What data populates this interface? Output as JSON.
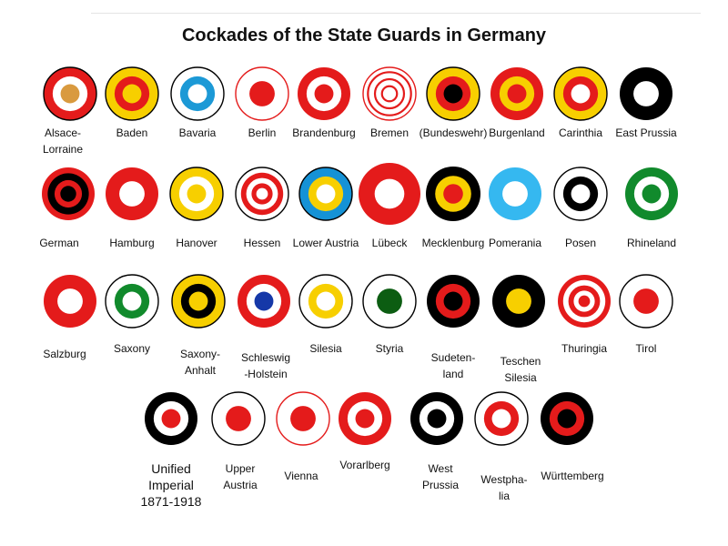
{
  "title": "Cockades of the State Guards in Germany",
  "colors": {
    "red": "#e41b1b",
    "yellow": "#f7cf00",
    "black": "#000000",
    "white": "#ffffff",
    "green": "#118a2c",
    "blue": "#1592d6",
    "darkgreen": "#0c5d12"
  },
  "rows": [
    {
      "items": [
        {
          "name": "Alsace-\nLorraine",
          "rings": [
            "black-thin",
            "red",
            "white",
            "#d99a3f"
          ]
        },
        {
          "name": "Baden",
          "rings": [
            "black-thin",
            "yellow",
            "red",
            "yellow"
          ]
        },
        {
          "name": "Bavaria",
          "rings": [
            "black-thin",
            "white",
            "#1c99d6",
            "white"
          ]
        },
        {
          "name": "Berlin",
          "rings": [
            "red-thin",
            "white",
            "red"
          ]
        },
        {
          "name": "Brandenburg",
          "rings": [
            "red",
            "white",
            "red"
          ]
        },
        {
          "name": "Bremen",
          "rings": [
            "red-thin",
            "white",
            "red-ring",
            "white",
            "red-ring",
            "white",
            "red-ring",
            "white"
          ]
        },
        {
          "name": "(Bundeswehr)",
          "rings": [
            "black-thin",
            "yellow",
            "red",
            "black"
          ]
        },
        {
          "name": "Burgenland",
          "rings": [
            "red",
            "yellow",
            "red"
          ]
        },
        {
          "name": "Carinthia",
          "rings": [
            "black-thin",
            "yellow",
            "red",
            "white"
          ]
        },
        {
          "name": "East Prussia",
          "rings": [
            "black",
            "white"
          ]
        }
      ]
    },
    {
      "items": [
        {
          "name": "German",
          "rings": [
            "red",
            "black",
            "red",
            "black"
          ]
        },
        {
          "name": "Hamburg",
          "rings": [
            "red",
            "white"
          ]
        },
        {
          "name": "Hanover",
          "rings": [
            "black-thin",
            "yellow",
            "white",
            "yellow"
          ]
        },
        {
          "name": "Hessen",
          "rings": [
            "black-thin",
            "white",
            "red",
            "white",
            "red",
            "white"
          ]
        },
        {
          "name": "Lower Austria",
          "rings": [
            "black-thin",
            "blue",
            "yellow",
            "white"
          ]
        },
        {
          "name": "Lübeck",
          "rings": [
            "red",
            "white"
          ]
        },
        {
          "name": "Mecklenburg",
          "rings": [
            "black",
            "yellow",
            "red"
          ]
        },
        {
          "name": "Pomerania",
          "rings": [
            "#35b8f0",
            "white"
          ]
        },
        {
          "name": "Posen",
          "rings": [
            "black-thin",
            "white",
            "black",
            "white"
          ]
        },
        {
          "name": "Rhineland",
          "rings": [
            "green",
            "white",
            "green"
          ]
        }
      ]
    },
    {
      "items": [
        {
          "name": "Salzburg",
          "rings": [
            "red",
            "white"
          ]
        },
        {
          "name": "Saxony",
          "rings": [
            "black-thin",
            "white",
            "green",
            "white"
          ]
        },
        {
          "name": "Saxony-\nAnhalt",
          "rings": [
            "black-thin",
            "yellow",
            "black",
            "yellow"
          ]
        },
        {
          "name": "Schleswig\n-Holstein",
          "rings": [
            "red",
            "white",
            "#1538a8"
          ]
        },
        {
          "name": "Silesia",
          "rings": [
            "black-thin",
            "white",
            "yellow",
            "white"
          ]
        },
        {
          "name": "Styria",
          "rings": [
            "black-thin",
            "white",
            "darkgreen"
          ]
        },
        {
          "name": "Sudeten-\nland",
          "rings": [
            "black",
            "red",
            "black"
          ]
        },
        {
          "name": "Teschen\nSilesia",
          "rings": [
            "black",
            "yellow"
          ]
        },
        {
          "name": "Thuringia",
          "rings": [
            "red",
            "white",
            "red",
            "white",
            "red"
          ]
        },
        {
          "name": "Tirol",
          "rings": [
            "black-thin",
            "white",
            "red"
          ]
        }
      ]
    },
    {
      "items": [
        {
          "name": "Unified\nImperial\n1871-1918",
          "rings": [
            "black",
            "white",
            "red"
          ]
        },
        {
          "name": "Upper\nAustria",
          "rings": [
            "black-thin",
            "white",
            "red"
          ]
        },
        {
          "name": "Vienna",
          "rings": [
            "red-thin",
            "white",
            "red"
          ]
        },
        {
          "name": "Vorarlberg",
          "rings": [
            "red",
            "white",
            "red"
          ]
        },
        {
          "name": "West\nPrussia",
          "rings": [
            "black",
            "white",
            "black"
          ]
        },
        {
          "name": "Westpha-\nlia",
          "rings": [
            "black-thin",
            "white",
            "red",
            "white"
          ]
        },
        {
          "name": "Württemberg",
          "rings": [
            "black",
            "red",
            "black"
          ]
        }
      ]
    }
  ]
}
